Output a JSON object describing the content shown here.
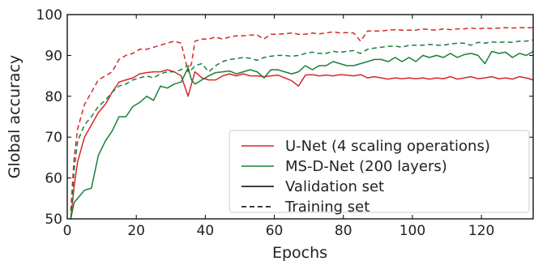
{
  "chart_data": {
    "type": "line",
    "title": "",
    "xlabel": "Epochs",
    "ylabel": "Global accuracy",
    "xlim": [
      0,
      135
    ],
    "ylim": [
      50,
      100
    ],
    "xticks": [
      0,
      20,
      40,
      60,
      80,
      100,
      120
    ],
    "yticks": [
      50,
      60,
      70,
      80,
      90,
      100
    ],
    "grid": false,
    "legend_position": "lower-right",
    "legend": [
      {
        "label": "U-Net (4 scaling operations)",
        "color": "#d62728",
        "style": "solid"
      },
      {
        "label": "MS-D-Net (200 layers)",
        "color": "#1a7f3c",
        "style": "solid"
      },
      {
        "label": "Validation set",
        "color": "#000000",
        "style": "solid"
      },
      {
        "label": "Training set",
        "color": "#000000",
        "style": "dashed"
      }
    ],
    "series": [
      {
        "model": "U-Net (4 scaling operations)",
        "set": "Validation set",
        "color": "#d62728",
        "dashed": false,
        "x": [
          1,
          2,
          3,
          5,
          7,
          9,
          11,
          13,
          15,
          17,
          19,
          21,
          23,
          25,
          27,
          29,
          31,
          33,
          35,
          36,
          37,
          39,
          41,
          43,
          45,
          47,
          49,
          51,
          53,
          55,
          57,
          59,
          61,
          63,
          65,
          67,
          69,
          71,
          73,
          75,
          77,
          79,
          81,
          83,
          85,
          87,
          89,
          91,
          93,
          95,
          97,
          99,
          101,
          103,
          105,
          107,
          109,
          111,
          113,
          115,
          117,
          119,
          121,
          123,
          125,
          127,
          129,
          131,
          133,
          135
        ],
        "y": [
          50,
          58,
          64,
          70,
          73,
          76,
          78,
          81,
          83.5,
          84,
          84.5,
          85.5,
          85.8,
          86,
          86,
          86.5,
          86,
          85,
          80,
          83,
          86,
          84.5,
          84,
          84,
          85,
          85.5,
          85,
          85.5,
          85,
          85,
          84.8,
          85,
          85.2,
          84.5,
          83.8,
          82.5,
          85.2,
          85.3,
          85,
          85.2,
          85,
          85.3,
          85.2,
          85,
          85.3,
          84.5,
          84.8,
          84.5,
          84.2,
          84.5,
          84.3,
          84.5,
          84.3,
          84.5,
          84.2,
          84.5,
          84.3,
          84.8,
          84.2,
          84.5,
          84.8,
          84.3,
          84.5,
          84.8,
          84.3,
          84.5,
          84.2,
          84.8,
          84.5,
          84
        ]
      },
      {
        "model": "U-Net (4 scaling operations)",
        "set": "Training set",
        "color": "#d62728",
        "dashed": true,
        "x": [
          1,
          2,
          3,
          5,
          7,
          9,
          11,
          13,
          15,
          17,
          19,
          21,
          23,
          25,
          27,
          29,
          31,
          33,
          35,
          36,
          37,
          39,
          41,
          43,
          45,
          47,
          49,
          51,
          53,
          55,
          57,
          59,
          61,
          63,
          65,
          67,
          69,
          71,
          73,
          75,
          77,
          79,
          81,
          83,
          85,
          87,
          89,
          91,
          93,
          95,
          97,
          99,
          101,
          103,
          105,
          107,
          109,
          111,
          113,
          115,
          117,
          119,
          121,
          123,
          125,
          127,
          129,
          131,
          133,
          135
        ],
        "y": [
          52,
          65,
          72,
          78,
          81,
          84,
          85,
          86,
          89,
          90,
          90.5,
          91.5,
          91.5,
          92,
          92.5,
          93,
          93.5,
          93,
          86,
          88,
          93.5,
          94,
          94,
          94.5,
          94,
          94.5,
          94.8,
          94.8,
          95,
          95,
          94,
          95.2,
          95.2,
          95.3,
          95.5,
          95.2,
          95.2,
          95.5,
          95.3,
          95.5,
          95.8,
          95.5,
          95.6,
          95.5,
          93.5,
          96,
          96,
          96,
          96.2,
          96.3,
          96.2,
          96.2,
          96.2,
          96.5,
          96.3,
          96.2,
          96.5,
          96.3,
          96.5,
          96.5,
          96.7,
          96.5,
          96.7,
          96.6,
          96.7,
          96.8,
          96.7,
          96.8,
          96.8,
          96.8
        ]
      },
      {
        "model": "MS-D-Net (200 layers)",
        "set": "Validation set",
        "color": "#1a7f3c",
        "dashed": false,
        "x": [
          1,
          2,
          3,
          5,
          7,
          9,
          11,
          13,
          15,
          17,
          19,
          21,
          23,
          25,
          27,
          29,
          31,
          33,
          35,
          36,
          37,
          39,
          41,
          43,
          45,
          47,
          49,
          51,
          53,
          55,
          57,
          59,
          61,
          63,
          65,
          67,
          69,
          71,
          73,
          75,
          77,
          79,
          81,
          83,
          85,
          87,
          89,
          91,
          93,
          95,
          97,
          99,
          101,
          103,
          105,
          107,
          109,
          111,
          113,
          115,
          117,
          119,
          121,
          123,
          125,
          127,
          129,
          131,
          133,
          135
        ],
        "y": [
          50,
          54,
          55,
          57,
          57.5,
          65.5,
          69,
          71.5,
          75,
          75,
          77.5,
          78.5,
          80,
          79,
          82.5,
          82,
          83,
          83.5,
          87,
          84,
          83,
          84,
          85,
          85.8,
          86,
          86.2,
          85.5,
          86,
          86.5,
          86,
          84.5,
          86.5,
          86.5,
          86,
          85.5,
          86,
          87.5,
          86.5,
          87.5,
          87.5,
          88.5,
          88,
          87.5,
          87.5,
          88,
          88.5,
          89,
          89,
          88.5,
          89.5,
          88.5,
          89.5,
          88.5,
          90,
          89.5,
          90,
          89.5,
          90.5,
          89.5,
          90.2,
          90.5,
          90,
          88,
          91,
          90.5,
          90.8,
          89.5,
          90.5,
          90,
          91
        ]
      },
      {
        "model": "MS-D-Net (200 layers)",
        "set": "Training set",
        "color": "#1a7f3c",
        "dashed": true,
        "x": [
          1,
          2,
          3,
          5,
          7,
          9,
          11,
          13,
          15,
          17,
          19,
          21,
          23,
          25,
          27,
          29,
          31,
          33,
          35,
          36,
          37,
          39,
          41,
          43,
          45,
          47,
          49,
          51,
          53,
          55,
          57,
          59,
          61,
          63,
          65,
          67,
          69,
          71,
          73,
          75,
          77,
          79,
          81,
          83,
          85,
          87,
          89,
          91,
          93,
          95,
          97,
          99,
          101,
          103,
          105,
          107,
          109,
          111,
          113,
          115,
          117,
          119,
          121,
          123,
          125,
          127,
          129,
          131,
          133,
          135
        ],
        "y": [
          50,
          62,
          69,
          73,
          75,
          77.5,
          79,
          81,
          82.5,
          83,
          84,
          84.5,
          85,
          84.5,
          85.5,
          86,
          86,
          86.5,
          87.5,
          86.5,
          87.5,
          88,
          86,
          87.5,
          88.5,
          89,
          89.2,
          89.5,
          89.3,
          88.8,
          89.5,
          89.8,
          90,
          90,
          89.8,
          90,
          90.5,
          90.8,
          90.5,
          90.5,
          91,
          90.8,
          91,
          91.2,
          90.5,
          91.5,
          91.8,
          92,
          92.2,
          92.3,
          92,
          92.5,
          92.5,
          92.5,
          92.7,
          92.5,
          92.5,
          92.8,
          93,
          93,
          92.5,
          93.2,
          93,
          93.3,
          93.2,
          93.3,
          93.2,
          93.5,
          93.5,
          93.8
        ]
      }
    ]
  }
}
